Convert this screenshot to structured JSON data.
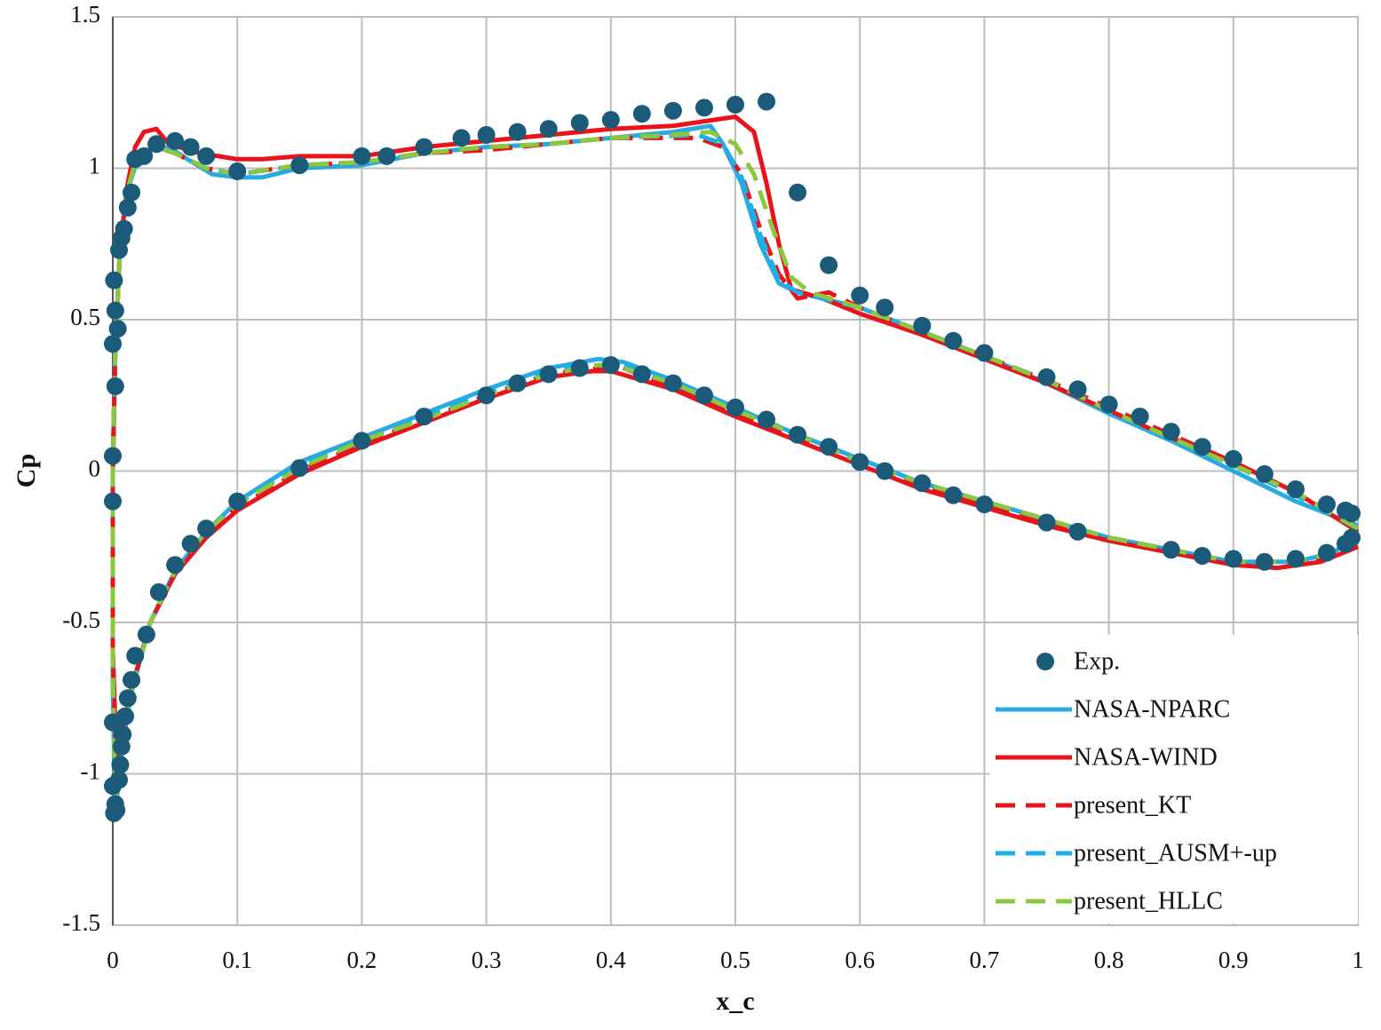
{
  "chart_data": {
    "type": "line",
    "xlabel": "x_c",
    "ylabel": "Cp",
    "xlim": [
      0,
      1
    ],
    "xticks": [
      0,
      0.1,
      0.2,
      0.3,
      0.4,
      0.5,
      0.6,
      0.7,
      0.8,
      0.9,
      1
    ],
    "ylim": [
      -1.5,
      1.5
    ],
    "yticks": [
      -1.5,
      -1,
      -0.5,
      0,
      0.5,
      1,
      1.5
    ],
    "grid": true,
    "legend": "lower right",
    "series": [
      {
        "name": "Exp.",
        "color": "#1b5a78",
        "style": "markers",
        "x": [
          0,
          0,
          0,
          0.002,
          0.004,
          0.002,
          0.001,
          0.005,
          0.007,
          0.009,
          0.012,
          0.015,
          0.018,
          0.025,
          0.035,
          0.05,
          0.0625,
          0.075,
          0.1,
          0.15,
          0.2,
          0.22,
          0.25,
          0.28,
          0.3,
          0.325,
          0.35,
          0.375,
          0.4,
          0.425,
          0.45,
          0.475,
          0.5,
          0.525,
          0.55,
          0.575,
          0.6,
          0.62,
          0.65,
          0.675,
          0.7,
          0.75,
          0.775,
          0.8,
          0.825,
          0.85,
          0.875,
          0.9,
          0.925,
          0.95,
          0.975,
          0.99,
          0.995,
          0,
          0,
          0.002,
          0.001,
          0.003,
          0.005,
          0.006,
          0.007,
          0.008,
          0.01,
          0.012,
          0.015,
          0.018,
          0.027,
          0.037,
          0.05,
          0.0625,
          0.075,
          0.1,
          0.15,
          0.2,
          0.25,
          0.3,
          0.325,
          0.35,
          0.375,
          0.4,
          0.425,
          0.45,
          0.475,
          0.5,
          0.525,
          0.55,
          0.575,
          0.6,
          0.62,
          0.65,
          0.675,
          0.7,
          0.75,
          0.775,
          0.85,
          0.875,
          0.9,
          0.925,
          0.95,
          0.975,
          0.99,
          0.995
        ],
        "values": [
          0.42,
          0.05,
          -0.1,
          0.28,
          0.47,
          0.53,
          0.63,
          0.73,
          0.77,
          0.8,
          0.87,
          0.92,
          1.03,
          1.04,
          1.08,
          1.09,
          1.07,
          1.04,
          0.99,
          1.01,
          1.04,
          1.04,
          1.07,
          1.1,
          1.11,
          1.12,
          1.13,
          1.15,
          1.16,
          1.18,
          1.19,
          1.2,
          1.21,
          1.22,
          0.92,
          0.68,
          0.58,
          0.54,
          0.48,
          0.43,
          0.39,
          0.31,
          0.27,
          0.22,
          0.18,
          0.13,
          0.08,
          0.04,
          -0.01,
          -0.06,
          -0.11,
          -0.13,
          -0.14,
          -0.83,
          -1.04,
          -1.1,
          -1.13,
          -1.12,
          -1.02,
          -0.97,
          -0.91,
          -0.87,
          -0.81,
          -0.75,
          -0.69,
          -0.61,
          -0.54,
          -0.4,
          -0.31,
          -0.24,
          -0.19,
          -0.1,
          0.01,
          0.1,
          0.18,
          0.25,
          0.29,
          0.32,
          0.34,
          0.35,
          0.32,
          0.29,
          0.25,
          0.21,
          0.17,
          0.12,
          0.08,
          0.03,
          0,
          -0.04,
          -0.08,
          -0.11,
          -0.17,
          -0.2,
          -0.26,
          -0.28,
          -0.29,
          -0.3,
          -0.29,
          -0.27,
          -0.24,
          -0.22
        ]
      },
      {
        "name": "NASA-NPARC",
        "color": "#29abe2",
        "style": "solid",
        "x": [
          1,
          0.95,
          0.9,
          0.85,
          0.8,
          0.75,
          0.7,
          0.65,
          0.6,
          0.55,
          0.535,
          0.52,
          0.505,
          0.49,
          0.48,
          0.45,
          0.4,
          0.35,
          0.3,
          0.25,
          0.2,
          0.15,
          0.12,
          0.1,
          0.08,
          0.06,
          0.045,
          0.03,
          0.02,
          0.012,
          0.006,
          0.002,
          0,
          0,
          0.002,
          0.005,
          0.01,
          0.015,
          0.03,
          0.05,
          0.075,
          0.1,
          0.15,
          0.2,
          0.25,
          0.3,
          0.35,
          0.39,
          0.41,
          0.45,
          0.5,
          0.55,
          0.6,
          0.65,
          0.7,
          0.75,
          0.8,
          0.85,
          0.9,
          0.95,
          0.98,
          1
        ],
        "values": [
          -0.18,
          -0.1,
          0,
          0.1,
          0.19,
          0.29,
          0.38,
          0.46,
          0.54,
          0.59,
          0.62,
          0.75,
          0.95,
          1.08,
          1.14,
          1.12,
          1.1,
          1.08,
          1.07,
          1.05,
          1.01,
          1,
          0.97,
          0.97,
          0.98,
          1.03,
          1.07,
          1.06,
          1.03,
          0.93,
          0.75,
          0.4,
          0,
          -0.7,
          -1.15,
          -1,
          -0.85,
          -0.73,
          -0.5,
          -0.33,
          -0.2,
          -0.1,
          0.03,
          0.11,
          0.19,
          0.27,
          0.34,
          0.37,
          0.36,
          0.3,
          0.21,
          0.12,
          0.04,
          -0.04,
          -0.1,
          -0.16,
          -0.22,
          -0.26,
          -0.3,
          -0.3,
          -0.27,
          -0.21
        ]
      },
      {
        "name": "NASA-WIND",
        "color": "#e8141b",
        "style": "solid",
        "x": [
          1,
          0.95,
          0.9,
          0.85,
          0.8,
          0.75,
          0.7,
          0.65,
          0.6,
          0.57,
          0.545,
          0.535,
          0.525,
          0.515,
          0.5,
          0.45,
          0.4,
          0.35,
          0.3,
          0.25,
          0.2,
          0.15,
          0.12,
          0.1,
          0.07,
          0.045,
          0.035,
          0.025,
          0.018,
          0.012,
          0.006,
          0.002,
          0,
          0,
          0.003,
          0.008,
          0.015,
          0.03,
          0.05,
          0.075,
          0.1,
          0.15,
          0.2,
          0.25,
          0.3,
          0.35,
          0.385,
          0.4,
          0.45,
          0.5,
          0.55,
          0.6,
          0.65,
          0.7,
          0.75,
          0.8,
          0.85,
          0.9,
          0.935,
          0.97,
          1
        ],
        "values": [
          -0.2,
          -0.07,
          0.03,
          0.11,
          0.2,
          0.29,
          0.37,
          0.45,
          0.52,
          0.57,
          0.6,
          0.75,
          0.95,
          1.12,
          1.17,
          1.14,
          1.13,
          1.11,
          1.09,
          1.07,
          1.04,
          1.04,
          1.03,
          1.03,
          1.05,
          1.08,
          1.13,
          1.12,
          1.07,
          0.95,
          0.75,
          0.4,
          0,
          -0.6,
          -0.95,
          -0.85,
          -0.72,
          -0.5,
          -0.34,
          -0.22,
          -0.13,
          -0.01,
          0.08,
          0.16,
          0.24,
          0.31,
          0.33,
          0.33,
          0.27,
          0.18,
          0.1,
          0.02,
          -0.06,
          -0.12,
          -0.18,
          -0.23,
          -0.27,
          -0.31,
          -0.32,
          -0.3,
          -0.25
        ]
      },
      {
        "name": "present_KT",
        "color": "#e8141b",
        "style": "dashed",
        "x": [
          1,
          0.95,
          0.9,
          0.85,
          0.8,
          0.75,
          0.7,
          0.65,
          0.6,
          0.575,
          0.55,
          0.535,
          0.52,
          0.505,
          0.49,
          0.47,
          0.4,
          0.35,
          0.3,
          0.25,
          0.2,
          0.15,
          0.1,
          0.075,
          0.05,
          0.035,
          0.02,
          0.012,
          0.006,
          0.002,
          0,
          0,
          0.003,
          0.008,
          0.015,
          0.03,
          0.05,
          0.075,
          0.1,
          0.15,
          0.2,
          0.25,
          0.3,
          0.35,
          0.39,
          0.41,
          0.45,
          0.5,
          0.55,
          0.6,
          0.65,
          0.7,
          0.75,
          0.8,
          0.85,
          0.9,
          0.95,
          0.98,
          1
        ],
        "values": [
          -0.2,
          -0.07,
          0.03,
          0.12,
          0.21,
          0.3,
          0.38,
          0.46,
          0.54,
          0.59,
          0.57,
          0.65,
          0.8,
          0.98,
          1.07,
          1.1,
          1.1,
          1.08,
          1.06,
          1.05,
          1.02,
          1.01,
          0.98,
          1,
          1.05,
          1.07,
          1.05,
          0.93,
          0.75,
          0.4,
          0,
          -0.6,
          -1,
          -0.85,
          -0.72,
          -0.5,
          -0.34,
          -0.21,
          -0.12,
          0,
          0.09,
          0.17,
          0.25,
          0.32,
          0.34,
          0.34,
          0.28,
          0.19,
          0.11,
          0.03,
          -0.05,
          -0.11,
          -0.17,
          -0.22,
          -0.26,
          -0.3,
          -0.3,
          -0.28,
          -0.22
        ]
      },
      {
        "name": "present_AUSM+-up",
        "color": "#1ab0e8",
        "style": "dashed",
        "x": [
          1,
          0.95,
          0.9,
          0.85,
          0.8,
          0.75,
          0.7,
          0.65,
          0.6,
          0.55,
          0.535,
          0.52,
          0.505,
          0.49,
          0.47,
          0.4,
          0.35,
          0.3,
          0.25,
          0.2,
          0.15,
          0.1,
          0.075,
          0.05,
          0.035,
          0.02,
          0.012,
          0.006,
          0.002,
          0,
          0,
          0.002,
          0.006,
          0.012,
          0.03,
          0.05,
          0.075,
          0.1,
          0.15,
          0.2,
          0.25,
          0.3,
          0.35,
          0.39,
          0.41,
          0.45,
          0.5,
          0.55,
          0.6,
          0.65,
          0.7,
          0.75,
          0.8,
          0.85,
          0.9,
          0.95,
          0.98,
          1
        ],
        "values": [
          -0.19,
          -0.08,
          0.02,
          0.11,
          0.2,
          0.3,
          0.38,
          0.46,
          0.54,
          0.59,
          0.63,
          0.78,
          0.97,
          1.08,
          1.11,
          1.1,
          1.08,
          1.07,
          1.05,
          1.02,
          1.01,
          0.98,
          1,
          1.05,
          1.07,
          1.05,
          0.93,
          0.75,
          0.4,
          0,
          -0.65,
          -1.1,
          -0.9,
          -0.78,
          -0.5,
          -0.33,
          -0.2,
          -0.11,
          0.02,
          0.1,
          0.18,
          0.26,
          0.33,
          0.35,
          0.35,
          0.29,
          0.2,
          0.12,
          0.03,
          -0.04,
          -0.1,
          -0.16,
          -0.22,
          -0.26,
          -0.3,
          -0.3,
          -0.27,
          -0.21
        ]
      },
      {
        "name": "present_HLLC",
        "color": "#8dc63f",
        "style": "dashed",
        "x": [
          1,
          0.95,
          0.9,
          0.85,
          0.8,
          0.75,
          0.7,
          0.65,
          0.6,
          0.56,
          0.545,
          0.53,
          0.515,
          0.5,
          0.48,
          0.45,
          0.4,
          0.35,
          0.3,
          0.25,
          0.2,
          0.15,
          0.1,
          0.075,
          0.05,
          0.035,
          0.02,
          0.012,
          0.006,
          0.002,
          0,
          0,
          0.002,
          0.006,
          0.012,
          0.03,
          0.05,
          0.075,
          0.1,
          0.15,
          0.2,
          0.25,
          0.3,
          0.35,
          0.39,
          0.41,
          0.45,
          0.5,
          0.55,
          0.6,
          0.65,
          0.7,
          0.75,
          0.8,
          0.85,
          0.9,
          0.95,
          0.98,
          1
        ],
        "values": [
          -0.19,
          -0.07,
          0.02,
          0.11,
          0.2,
          0.3,
          0.38,
          0.46,
          0.54,
          0.59,
          0.64,
          0.8,
          0.98,
          1.08,
          1.12,
          1.11,
          1.1,
          1.08,
          1.07,
          1.05,
          1.02,
          1.01,
          0.98,
          1,
          1.05,
          1.07,
          1.05,
          0.93,
          0.75,
          0.4,
          0,
          -0.65,
          -1.1,
          -0.9,
          -0.78,
          -0.5,
          -0.33,
          -0.2,
          -0.11,
          0.01,
          0.1,
          0.17,
          0.25,
          0.32,
          0.35,
          0.34,
          0.29,
          0.2,
          0.12,
          0.03,
          -0.04,
          -0.1,
          -0.16,
          -0.22,
          -0.26,
          -0.3,
          -0.3,
          -0.27,
          -0.21
        ]
      }
    ]
  }
}
